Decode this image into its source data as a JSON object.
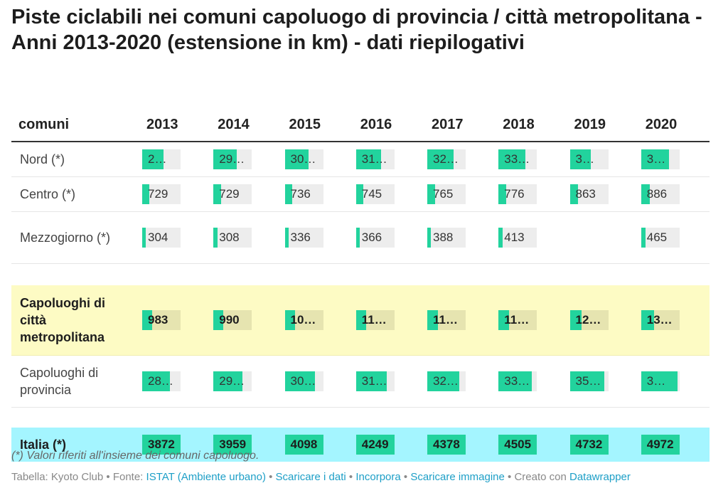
{
  "title": "Piste ciclabili nei comuni capoluogo di provincia / città metropolitana - Anni 2013-2020 (estensione in km) - dati riepilogativi",
  "table": {
    "header_label": "comuni",
    "years": [
      "2013",
      "2014",
      "2015",
      "2016",
      "2017",
      "2018",
      "2019",
      "2020"
    ]
  },
  "chart_data": {
    "type": "table",
    "title": "Piste ciclabili nei comuni capoluogo di provincia / città metropolitana - Anni 2013-2020 (estensione in km) - dati riepilogativi",
    "columns": [
      "comuni",
      "2013",
      "2014",
      "2015",
      "2016",
      "2017",
      "2018",
      "2019",
      "2020"
    ],
    "rows": [
      {
        "label": "Nord (*)",
        "style": "normal",
        "fills": [
          0.55,
          0.6,
          0.62,
          0.65,
          0.68,
          0.7,
          0.55,
          0.72
        ],
        "values": [
          "2…",
          "29…",
          "30…",
          "31…",
          "32…",
          "33…",
          "3…",
          "3…"
        ]
      },
      {
        "label": "Centro (*)",
        "style": "normal",
        "fills": [
          0.19,
          0.19,
          0.19,
          0.19,
          0.2,
          0.2,
          0.22,
          0.23
        ],
        "values": [
          "729",
          "729",
          "736",
          "745",
          "765",
          "776",
          "863",
          "886"
        ]
      },
      {
        "label": "Mezzogiorno (*)",
        "style": "normal",
        "fills": [
          0.08,
          0.08,
          0.09,
          0.09,
          0.1,
          0.11,
          0,
          0.12
        ],
        "values": [
          "304",
          "308",
          "336",
          "366",
          "388",
          "413",
          "",
          "465"
        ]
      },
      {
        "label": "Capoluoghi di città metropolitana",
        "style": "bold-yellow",
        "fills": [
          0.25,
          0.26,
          0.26,
          0.27,
          0.28,
          0.28,
          0.3,
          0.33
        ],
        "values": [
          "983",
          "990",
          "10…",
          "11…",
          "11…",
          "11…",
          "12…",
          "13…"
        ]
      },
      {
        "label": "Capoluoghi di provincia",
        "style": "normal",
        "fills": [
          0.72,
          0.75,
          0.78,
          0.8,
          0.84,
          0.86,
          0.9,
          0.95
        ],
        "values": [
          "28…",
          "29…",
          "30…",
          "31…",
          "32…",
          "33…",
          "35…",
          "3…"
        ]
      },
      {
        "label": "Italia (*)",
        "style": "bold-cyan",
        "fills": [
          1,
          1,
          1,
          1,
          1,
          1,
          1,
          1
        ],
        "values": [
          "3872",
          "3959",
          "4098",
          "4249",
          "4378",
          "4505",
          "4732",
          "4972"
        ]
      }
    ]
  },
  "footnote": "(*) Valori riferiti all'insieme dei comuni capoluogo.",
  "footer": {
    "prefix": "Tabella: Kyoto Club • Fonte: ",
    "source_link": "ISTAT (Ambiente urbano)",
    "sep1": " • ",
    "download_data": "Scaricare i dati",
    "sep2": " • ",
    "embed": "Incorpora",
    "sep3": " • ",
    "download_image": "Scaricare immagine",
    "made_with": " • Creato con ",
    "datawrapper": "Datawrapper"
  },
  "colors": {
    "bar": "#22d39d",
    "bar_track": "#ededed",
    "highlight_yellow": "#fdfbc4",
    "highlight_cyan": "#a4f5ff",
    "link": "#1d9fc7"
  }
}
